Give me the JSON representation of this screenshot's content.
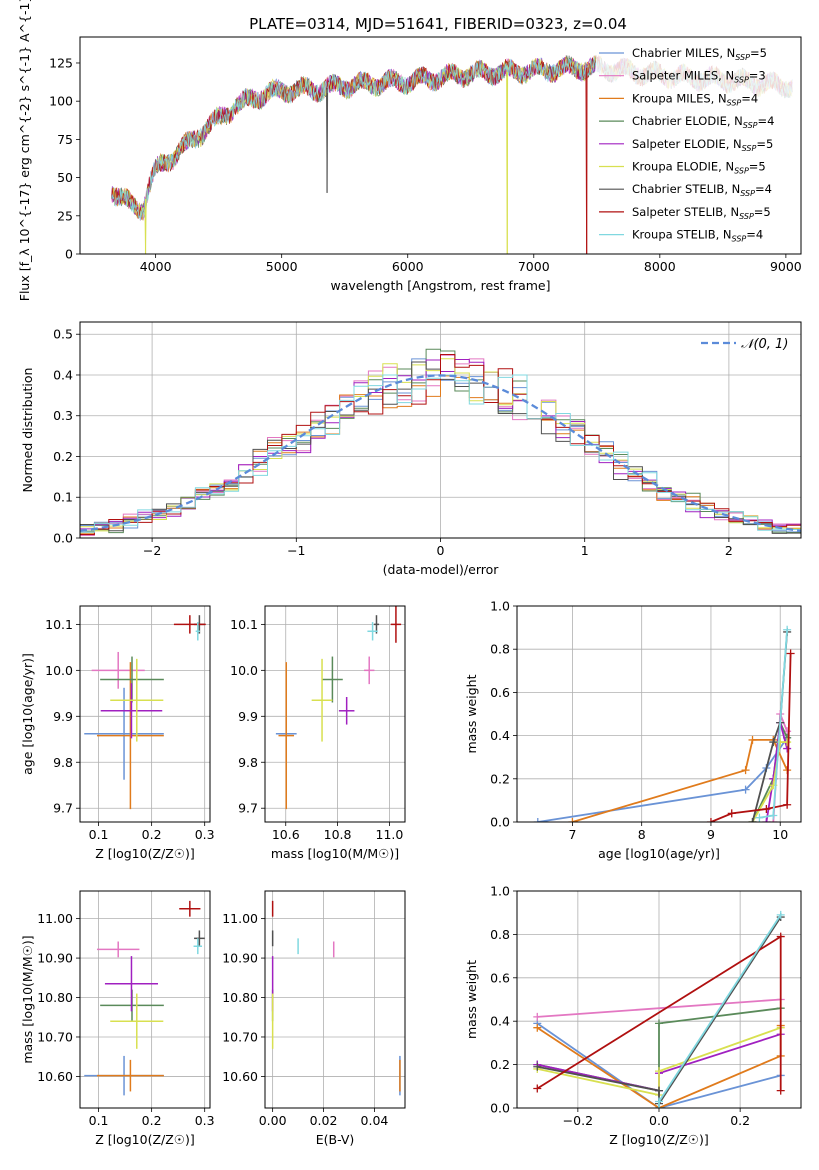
{
  "figure_title": "PLATE=0314, MJD=51641, FIBERID=0323, z=0.04",
  "model_colors": [
    "#6a93d6",
    "#e377c2",
    "#e07b1c",
    "#5a8a5a",
    "#a020c0",
    "#d8e050",
    "#505050",
    "#b01010",
    "#80d8e0"
  ],
  "chart_data": [
    {
      "id": "spectrum",
      "type": "line",
      "title": "PLATE=0314, MJD=51641, FIBERID=0323, z=0.04",
      "xlabel": "wavelength [Angstrom, rest frame]",
      "ylabel": "Flux [f_λ 10^{-17} erg cm^{-2} s^{-1} A^{-1}]",
      "xlim": [
        3400,
        9120
      ],
      "ylim": [
        0,
        142
      ],
      "xticks": [
        4000,
        5000,
        6000,
        7000,
        8000,
        9000
      ],
      "yticks": [
        0,
        25,
        50,
        75,
        100,
        125
      ],
      "grid": false,
      "legend_position": "right",
      "legend": [
        {
          "model": "Chabrier MILES",
          "n": "5"
        },
        {
          "model": "Salpeter MILES",
          "n": "3"
        },
        {
          "model": "Kroupa MILES",
          "n": "4"
        },
        {
          "model": "Chabrier ELODIE",
          "n": "4"
        },
        {
          "model": "Salpeter ELODIE",
          "n": "5"
        },
        {
          "model": "Kroupa ELODIE",
          "n": "5"
        },
        {
          "model": "Chabrier STELIB",
          "n": "4"
        },
        {
          "model": "Salpeter STELIB",
          "n": "5"
        },
        {
          "model": "Kroupa STELIB",
          "n": "4"
        }
      ],
      "continuum": {
        "x": [
          3650,
          3800,
          3900,
          3950,
          4000,
          4200,
          4400,
          4600,
          4800,
          5000,
          5300,
          5600,
          6000,
          6500,
          7000,
          7400,
          7600,
          8000,
          8500,
          9000
        ],
        "y": [
          42,
          32,
          30,
          45,
          55,
          68,
          82,
          95,
          103,
          107,
          108,
          111,
          113,
          118,
          120,
          122,
          121,
          117,
          114,
          110
        ]
      },
      "drops": [
        {
          "series": 5,
          "x": 3920,
          "y": 0
        },
        {
          "series": 5,
          "x": 6790,
          "y": 0
        },
        {
          "series": 7,
          "x": 7420,
          "y": 0
        },
        {
          "series": 6,
          "x": 5360,
          "y": 40
        }
      ]
    },
    {
      "id": "residuals",
      "type": "histogram",
      "xlabel": "(data-model)/error",
      "ylabel": "Normed distribution",
      "xlim": [
        -2.5,
        2.5
      ],
      "ylim": [
        0,
        0.53
      ],
      "xticks": [
        -2,
        -1,
        0,
        1,
        2
      ],
      "yticks": [
        0.0,
        0.1,
        0.2,
        0.3,
        0.4,
        0.5
      ],
      "grid": true,
      "bin_width": 0.1,
      "reference": {
        "label": "𝒩(0, 1)",
        "style": "dashed",
        "color": "#5b8bd9"
      },
      "legend_position": "upper right"
    },
    {
      "id": "age-vs-Z",
      "type": "errorbar",
      "xlabel": "Z [log10(Z/Z☉)]",
      "ylabel": "age [log10(age/yr)]",
      "xlim": [
        0.065,
        0.31
      ],
      "ylim": [
        9.67,
        10.14
      ],
      "xticks": [
        0.1,
        0.2,
        0.3
      ],
      "yticks": [
        9.7,
        9.8,
        9.9,
        10.0,
        10.1
      ],
      "grid": true,
      "points": [
        {
          "x": 0.148,
          "xerr": 0.075,
          "y": 9.862,
          "yerr": 0.1
        },
        {
          "x": 0.137,
          "xerr": 0.05,
          "y": 10.0,
          "yerr": 0.04
        },
        {
          "x": 0.16,
          "xerr": 0.063,
          "y": 9.858,
          "yerr": 0.16
        },
        {
          "x": 0.163,
          "xerr": 0.06,
          "y": 9.98,
          "yerr": 0.05
        },
        {
          "x": 0.162,
          "xerr": 0.058,
          "y": 9.912,
          "yerr": 0.06
        },
        {
          "x": 0.172,
          "xerr": 0.05,
          "y": 9.935,
          "yerr": 0.09
        },
        {
          "x": 0.29,
          "xerr": 0.01,
          "y": 10.1,
          "yerr": 0.02
        },
        {
          "x": 0.272,
          "xerr": 0.03,
          "y": 10.1,
          "yerr": 0.02
        },
        {
          "x": 0.287,
          "xerr": 0.004,
          "y": 10.085,
          "yerr": 0.02
        }
      ]
    },
    {
      "id": "age-vs-mass",
      "type": "errorbar",
      "xlabel": "mass [log10(M/M☉)]",
      "xlim": [
        10.52,
        11.06
      ],
      "ylim": [
        9.67,
        10.14
      ],
      "xticks": [
        10.6,
        10.8,
        11.0
      ],
      "yticks": [
        9.7,
        9.8,
        9.9,
        10.0,
        10.1
      ],
      "grid": true,
      "points": [
        {
          "x": 10.602,
          "xerr": 0.04,
          "y": 9.862,
          "yerr": 0.06
        },
        {
          "x": 10.922,
          "xerr": 0.02,
          "y": 10.0,
          "yerr": 0.03
        },
        {
          "x": 10.602,
          "xerr": 0.03,
          "y": 9.858,
          "yerr": 0.16
        },
        {
          "x": 10.78,
          "xerr": 0.04,
          "y": 9.98,
          "yerr": 0.05
        },
        {
          "x": 10.835,
          "xerr": 0.03,
          "y": 9.912,
          "yerr": 0.03
        },
        {
          "x": 10.74,
          "xerr": 0.04,
          "y": 9.935,
          "yerr": 0.09
        },
        {
          "x": 10.95,
          "xerr": 0.01,
          "y": 10.1,
          "yerr": 0.02
        },
        {
          "x": 11.025,
          "xerr": 0.02,
          "y": 10.1,
          "yerr": 0.04
        },
        {
          "x": 10.935,
          "xerr": 0.02,
          "y": 10.085,
          "yerr": 0.02
        }
      ]
    },
    {
      "id": "mass-weight-vs-age",
      "type": "line",
      "xlabel": "age [log10(age/yr)]",
      "ylabel": "mass weight",
      "xlim": [
        6.2,
        10.3
      ],
      "ylim": [
        0,
        1
      ],
      "xticks": [
        7,
        8,
        9,
        10
      ],
      "yticks": [
        0.0,
        0.2,
        0.4,
        0.6,
        0.8,
        1.0
      ],
      "grid": true,
      "series": [
        {
          "x": [
            6.5,
            9.5,
            9.8,
            10.1
          ],
          "y": [
            0.0,
            0.15,
            0.25,
            0.39
          ]
        },
        {
          "x": [
            9.9,
            10.0,
            10.1
          ],
          "y": [
            0.0,
            0.5,
            0.42
          ]
        },
        {
          "x": [
            7.0,
            9.5,
            9.6,
            9.9,
            10.1
          ],
          "y": [
            0.0,
            0.24,
            0.38,
            0.38,
            0.24
          ]
        },
        {
          "x": [
            9.6,
            9.9,
            10.0,
            10.1
          ],
          "y": [
            0.0,
            0.2,
            0.46,
            0.39
          ]
        },
        {
          "x": [
            9.8,
            9.9,
            10.0,
            10.1
          ],
          "y": [
            0.0,
            0.2,
            0.46,
            0.34
          ]
        },
        {
          "x": [
            9.6,
            9.9,
            10.0,
            10.1
          ],
          "y": [
            0.0,
            0.17,
            0.37,
            0.37
          ]
        },
        {
          "x": [
            9.6,
            9.9,
            10.0,
            10.1
          ],
          "y": [
            0.0,
            0.37,
            0.46,
            0.88
          ]
        },
        {
          "x": [
            9.0,
            9.3,
            9.8,
            10.1,
            10.15
          ],
          "y": [
            0.0,
            0.04,
            0.06,
            0.08,
            0.78
          ]
        },
        {
          "x": [
            9.7,
            9.9,
            10.1
          ],
          "y": [
            0.02,
            0.03,
            0.89
          ]
        }
      ]
    },
    {
      "id": "mass-vs-Z",
      "type": "errorbar",
      "xlabel": "Z [log10(Z/Z☉)]",
      "ylabel": "mass [log10(M/M☉)]",
      "xlim": [
        0.065,
        0.31
      ],
      "ylim": [
        10.52,
        11.07
      ],
      "xticks": [
        0.1,
        0.2,
        0.3
      ],
      "yticks": [
        10.6,
        10.7,
        10.8,
        10.9,
        11.0
      ],
      "grid": true,
      "points": [
        {
          "x": 0.148,
          "xerr": 0.075,
          "y": 10.602,
          "yerr": 0.05
        },
        {
          "x": 0.137,
          "xerr": 0.04,
          "y": 10.922,
          "yerr": 0.02
        },
        {
          "x": 0.16,
          "xerr": 0.063,
          "y": 10.602,
          "yerr": 0.04
        },
        {
          "x": 0.163,
          "xerr": 0.06,
          "y": 10.78,
          "yerr": 0.04
        },
        {
          "x": 0.162,
          "xerr": 0.05,
          "y": 10.835,
          "yerr": 0.07
        },
        {
          "x": 0.172,
          "xerr": 0.05,
          "y": 10.74,
          "yerr": 0.07
        },
        {
          "x": 0.29,
          "xerr": 0.01,
          "y": 10.95,
          "yerr": 0.02
        },
        {
          "x": 0.272,
          "xerr": 0.02,
          "y": 11.025,
          "yerr": 0.02
        },
        {
          "x": 0.287,
          "xerr": 0.008,
          "y": 10.93,
          "yerr": 0.02
        }
      ]
    },
    {
      "id": "mass-vs-EBV",
      "type": "errorbar",
      "xlabel": "E(B-V)",
      "xlim": [
        -0.003,
        0.052
      ],
      "ylim": [
        10.52,
        11.07
      ],
      "xticks": [
        0.0,
        0.02,
        0.04
      ],
      "yticks": [
        10.6,
        10.7,
        10.8,
        10.9,
        11.0
      ],
      "grid": true,
      "points": [
        {
          "x": 0.05,
          "xerr": 0,
          "y": 10.602,
          "yerr": 0.05
        },
        {
          "x": 0.024,
          "xerr": 0,
          "y": 10.922,
          "yerr": 0.02
        },
        {
          "x": 0.05,
          "xerr": 0,
          "y": 10.602,
          "yerr": 0.04
        },
        {
          "x": 0.0,
          "xerr": 0,
          "y": 10.78,
          "yerr": 0.04
        },
        {
          "x": 0.0,
          "xerr": 0,
          "y": 10.835,
          "yerr": 0.07
        },
        {
          "x": 0.0,
          "xerr": 0,
          "y": 10.74,
          "yerr": 0.07
        },
        {
          "x": 0.0,
          "xerr": 0,
          "y": 10.95,
          "yerr": 0.02
        },
        {
          "x": 0.0,
          "xerr": 0,
          "y": 11.025,
          "yerr": 0.02
        },
        {
          "x": 0.01,
          "xerr": 0,
          "y": 10.93,
          "yerr": 0.02
        }
      ]
    },
    {
      "id": "mass-weight-vs-Z",
      "type": "line",
      "xlabel": "Z [log10(Z/Z☉)]",
      "ylabel": "mass weight",
      "xlim": [
        -0.35,
        0.35
      ],
      "ylim": [
        0,
        1
      ],
      "xticks": [
        -0.2,
        0.0,
        0.2
      ],
      "yticks": [
        0.0,
        0.2,
        0.4,
        0.6,
        0.8,
        1.0
      ],
      "grid": true,
      "series": [
        {
          "x": [
            -0.3,
            0.0,
            0.3
          ],
          "y": [
            0.39,
            0.0,
            0.15
          ]
        },
        {
          "x": [
            -0.3,
            0.3
          ],
          "y": [
            0.42,
            0.5
          ]
        },
        {
          "x": [
            -0.3,
            0.0,
            0.3,
            0.3
          ],
          "y": [
            0.37,
            0.0,
            0.24,
            0.38
          ]
        },
        {
          "x": [
            -0.3,
            0.0,
            0.0,
            0.3
          ],
          "y": [
            0.2,
            0.08,
            0.39,
            0.46
          ]
        },
        {
          "x": [
            -0.3,
            0.0,
            0.0,
            0.3
          ],
          "y": [
            0.2,
            0.08,
            0.16,
            0.34
          ]
        },
        {
          "x": [
            -0.3,
            0.0,
            0.0,
            0.3
          ],
          "y": [
            0.18,
            0.06,
            0.17,
            0.37
          ]
        },
        {
          "x": [
            -0.3,
            0.0,
            0.0,
            0.3
          ],
          "y": [
            0.19,
            0.08,
            0.02,
            0.88
          ]
        },
        {
          "x": [
            -0.3,
            0.3,
            0.3
          ],
          "y": [
            0.09,
            0.79,
            0.08
          ]
        },
        {
          "x": [
            0.0,
            0.0,
            0.3
          ],
          "y": [
            0.0,
            0.03,
            0.89
          ]
        }
      ]
    }
  ]
}
